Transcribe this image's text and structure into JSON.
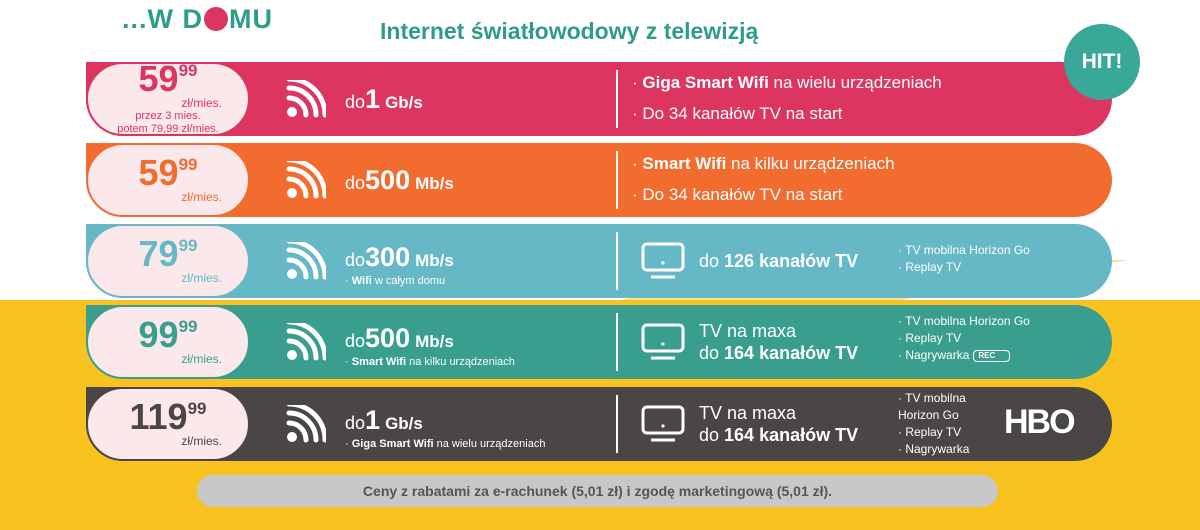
{
  "header": {
    "logo": "...W DOMU",
    "headline": "Internet światłowodowy z telewizją",
    "badge": "HIT!"
  },
  "colors": {
    "pink": "#dc3560",
    "orange": "#f26b2f",
    "light_blue": "#66b8c6",
    "teal": "#3a9e8f",
    "dark": "#4a4646",
    "yellow": "#f8c220"
  },
  "plans": [
    {
      "price_main": "59",
      "price_cents": "99",
      "unit": "zł/mies.",
      "note1": "przez 3 mies.",
      "note2": "potem 79,99 zł/mies.",
      "speed_prefix": "do",
      "speed_value": "1",
      "speed_unit": "Gb/s",
      "features": [
        {
          "bold": "Giga Smart Wifi",
          "rest": " na wielu urządzeniach"
        },
        {
          "bold": "",
          "rest": "Do 34 kanałów TV na start"
        }
      ]
    },
    {
      "price_main": "59",
      "price_cents": "99",
      "unit": "zł/mies.",
      "speed_prefix": "do",
      "speed_value": "500",
      "speed_unit": "Mb/s",
      "features": [
        {
          "bold": "Smart Wifi",
          "rest": " na kilku urządzeniach"
        },
        {
          "bold": "",
          "rest": "Do 34 kanałów TV na start"
        }
      ]
    },
    {
      "price_main": "79",
      "price_cents": "99",
      "unit": "zł/mies.",
      "speed_prefix": "do",
      "speed_value": "300",
      "speed_unit": "Mb/s",
      "speed_sub_bold": "Wifi",
      "speed_sub_rest": " w całym domu",
      "tv_line1": "",
      "tv_prefix": "do ",
      "tv_bold": "126 kanałów TV",
      "extras": [
        "TV mobilna Horizon Go",
        "Replay TV"
      ]
    },
    {
      "price_main": "99",
      "price_cents": "99",
      "unit": "zł/mies.",
      "speed_prefix": "do",
      "speed_value": "500",
      "speed_unit": "Mb/s",
      "speed_sub_bold": "Smart Wifi",
      "speed_sub_rest": " na kilku urządzeniach",
      "tv_line1": "TV na maxa",
      "tv_prefix": "do ",
      "tv_bold": "164 kanałów TV",
      "extras": [
        "TV mobilna Horizon Go",
        "Replay TV",
        "Nagrywarka"
      ],
      "rec": "REC"
    },
    {
      "price_main": "119",
      "price_cents": "99",
      "unit": "zł/mies.",
      "speed_prefix": "do",
      "speed_value": "1",
      "speed_unit": "Gb/s",
      "speed_sub_bold": "Giga Smart Wifi",
      "speed_sub_rest": " na wielu urządzeniach",
      "tv_line1": "TV na maxa",
      "tv_prefix": "do ",
      "tv_bold": "164 kanałów TV",
      "extras": [
        "TV mobilna Horizon Go",
        "Replay TV",
        "Nagrywarka"
      ],
      "hbo": "HBO"
    }
  ],
  "footer": "Ceny z rabatami za e-rachunek (5,01 zł) i zgodę marketingową (5,01 zł)."
}
